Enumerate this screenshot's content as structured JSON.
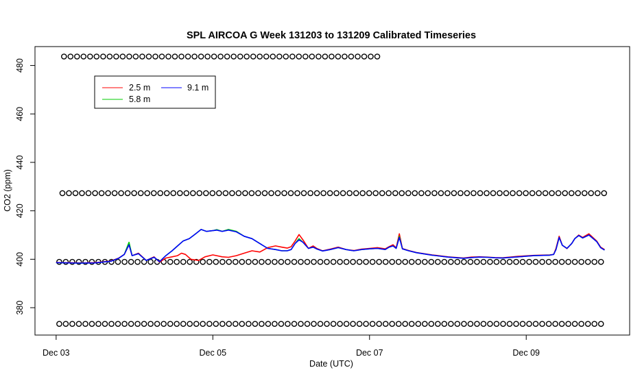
{
  "chart_data": {
    "type": "line",
    "title": "SPL AIRCOA G  Week 131203 to 131209  Calibrated Timeseries",
    "xlabel": "Date (UTC)",
    "ylabel": "CO2 (ppm)",
    "x_tick_labels": [
      "Dec 03",
      "Dec 05",
      "Dec 07",
      "Dec 09"
    ],
    "x_tick_values": [
      0,
      2,
      4,
      6
    ],
    "xlim": [
      -0.27,
      7.32
    ],
    "y_ticks": [
      380,
      400,
      420,
      440,
      460,
      480
    ],
    "ylim": [
      368.7,
      487.8
    ],
    "legend_position": "top-left",
    "legend": [
      {
        "name": "2.5 m",
        "color": "#ff0000"
      },
      {
        "name": "5.8 m",
        "color": "#00cd00"
      },
      {
        "name": "9.1 m",
        "color": "#0000ff"
      }
    ],
    "series": [
      {
        "name": "2.5 m",
        "color": "#ff0000",
        "points": [
          [
            0.0,
            398.7
          ],
          [
            0.3,
            398.5
          ],
          [
            0.5,
            398.6
          ],
          [
            0.7,
            399.3
          ],
          [
            0.8,
            400.5
          ],
          [
            0.87,
            402.0
          ],
          [
            0.93,
            406.0
          ],
          [
            0.97,
            401.5
          ],
          [
            1.05,
            402.5
          ],
          [
            1.15,
            399.5
          ],
          [
            1.25,
            401.0
          ],
          [
            1.32,
            398.8
          ],
          [
            1.4,
            400.5
          ],
          [
            1.48,
            401.0
          ],
          [
            1.55,
            401.5
          ],
          [
            1.6,
            402.5
          ],
          [
            1.65,
            402.0
          ],
          [
            1.72,
            400.0
          ],
          [
            1.82,
            399.5
          ],
          [
            1.9,
            401.0
          ],
          [
            2.0,
            401.8
          ],
          [
            2.12,
            401.0
          ],
          [
            2.2,
            400.8
          ],
          [
            2.3,
            401.5
          ],
          [
            2.4,
            402.5
          ],
          [
            2.5,
            403.5
          ],
          [
            2.6,
            403.0
          ],
          [
            2.7,
            404.8
          ],
          [
            2.8,
            405.5
          ],
          [
            2.88,
            405.0
          ],
          [
            2.95,
            404.6
          ],
          [
            3.0,
            405.2
          ],
          [
            3.05,
            407.5
          ],
          [
            3.1,
            410.2
          ],
          [
            3.15,
            408.0
          ],
          [
            3.22,
            404.5
          ],
          [
            3.28,
            405.5
          ],
          [
            3.33,
            404.4
          ],
          [
            3.4,
            403.5
          ],
          [
            3.5,
            404.2
          ],
          [
            3.6,
            405.0
          ],
          [
            3.7,
            404.0
          ],
          [
            3.8,
            403.6
          ],
          [
            3.9,
            404.2
          ],
          [
            4.0,
            404.5
          ],
          [
            4.1,
            404.8
          ],
          [
            4.2,
            404.3
          ],
          [
            4.25,
            405.2
          ],
          [
            4.3,
            406.0
          ],
          [
            4.34,
            404.7
          ],
          [
            4.38,
            410.5
          ],
          [
            4.42,
            404.4
          ],
          [
            4.5,
            403.6
          ],
          [
            4.6,
            402.8
          ],
          [
            4.8,
            401.8
          ],
          [
            5.0,
            401.0
          ],
          [
            5.2,
            400.5
          ],
          [
            5.3,
            400.9
          ],
          [
            5.4,
            401.0
          ],
          [
            5.5,
            400.9
          ],
          [
            5.6,
            400.7
          ],
          [
            5.7,
            400.6
          ],
          [
            5.9,
            401.2
          ],
          [
            6.1,
            401.6
          ],
          [
            6.3,
            401.8
          ],
          [
            6.35,
            402.0
          ],
          [
            6.38,
            404.5
          ],
          [
            6.42,
            409.5
          ],
          [
            6.46,
            405.8
          ],
          [
            6.52,
            404.4
          ],
          [
            6.58,
            406.5
          ],
          [
            6.62,
            408.5
          ],
          [
            6.67,
            410.0
          ],
          [
            6.72,
            409.0
          ],
          [
            6.8,
            410.5
          ],
          [
            6.9,
            407.5
          ],
          [
            6.95,
            405.0
          ],
          [
            7.0,
            404.0
          ]
        ]
      },
      {
        "name": "5.8 m",
        "color": "#00cd00",
        "points": [
          [
            0.0,
            398.6
          ],
          [
            0.3,
            398.4
          ],
          [
            0.5,
            398.5
          ],
          [
            0.7,
            399.2
          ],
          [
            0.8,
            400.4
          ],
          [
            0.87,
            402.0
          ],
          [
            0.93,
            407.0
          ],
          [
            0.97,
            401.5
          ],
          [
            1.05,
            402.3
          ],
          [
            1.15,
            399.5
          ],
          [
            1.25,
            400.8
          ],
          [
            1.32,
            399.0
          ],
          [
            1.4,
            401.5
          ],
          [
            1.48,
            403.5
          ],
          [
            1.55,
            405.5
          ],
          [
            1.62,
            407.5
          ],
          [
            1.7,
            408.5
          ],
          [
            1.78,
            410.5
          ],
          [
            1.85,
            412.3
          ],
          [
            1.92,
            411.5
          ],
          [
            2.0,
            411.8
          ],
          [
            2.05,
            412.2
          ],
          [
            2.12,
            411.5
          ],
          [
            2.2,
            412.3
          ],
          [
            2.3,
            411.5
          ],
          [
            2.4,
            409.5
          ],
          [
            2.5,
            408.5
          ],
          [
            2.6,
            406.5
          ],
          [
            2.7,
            404.5
          ],
          [
            2.8,
            404.0
          ],
          [
            2.88,
            403.5
          ],
          [
            2.95,
            403.5
          ],
          [
            3.0,
            404.0
          ],
          [
            3.05,
            406.5
          ],
          [
            3.1,
            408.5
          ],
          [
            3.15,
            407.0
          ],
          [
            3.22,
            404.5
          ],
          [
            3.28,
            405.0
          ],
          [
            3.33,
            404.2
          ],
          [
            3.4,
            403.4
          ],
          [
            3.5,
            404.0
          ],
          [
            3.6,
            404.8
          ],
          [
            3.7,
            404.0
          ],
          [
            3.8,
            403.5
          ],
          [
            3.9,
            404.0
          ],
          [
            4.0,
            404.3
          ],
          [
            4.1,
            404.5
          ],
          [
            4.2,
            404.0
          ],
          [
            4.25,
            405.0
          ],
          [
            4.3,
            405.5
          ],
          [
            4.34,
            404.5
          ],
          [
            4.38,
            409.5
          ],
          [
            4.42,
            404.3
          ],
          [
            4.5,
            403.5
          ],
          [
            4.6,
            402.7
          ],
          [
            4.8,
            401.7
          ],
          [
            5.0,
            400.9
          ],
          [
            5.2,
            400.4
          ],
          [
            5.3,
            400.7
          ],
          [
            5.4,
            400.9
          ],
          [
            5.5,
            400.8
          ],
          [
            5.6,
            400.6
          ],
          [
            5.7,
            400.5
          ],
          [
            5.9,
            401.0
          ],
          [
            6.1,
            401.5
          ],
          [
            6.3,
            401.7
          ],
          [
            6.35,
            402.0
          ],
          [
            6.38,
            404.0
          ],
          [
            6.42,
            409.0
          ],
          [
            6.46,
            405.8
          ],
          [
            6.52,
            404.5
          ],
          [
            6.58,
            406.5
          ],
          [
            6.62,
            408.5
          ],
          [
            6.67,
            409.8
          ],
          [
            6.72,
            408.8
          ],
          [
            6.8,
            410.0
          ],
          [
            6.9,
            407.3
          ],
          [
            6.95,
            404.8
          ],
          [
            7.0,
            403.8
          ]
        ]
      },
      {
        "name": "9.1 m",
        "color": "#0000ff",
        "points": [
          [
            0.0,
            398.6
          ],
          [
            0.3,
            398.4
          ],
          [
            0.5,
            398.5
          ],
          [
            0.7,
            399.2
          ],
          [
            0.8,
            400.4
          ],
          [
            0.87,
            402.0
          ],
          [
            0.93,
            406.0
          ],
          [
            0.97,
            401.5
          ],
          [
            1.05,
            402.3
          ],
          [
            1.15,
            399.5
          ],
          [
            1.25,
            400.8
          ],
          [
            1.32,
            399.0
          ],
          [
            1.4,
            401.5
          ],
          [
            1.48,
            403.5
          ],
          [
            1.55,
            405.5
          ],
          [
            1.62,
            407.5
          ],
          [
            1.7,
            408.5
          ],
          [
            1.78,
            410.5
          ],
          [
            1.85,
            412.3
          ],
          [
            1.92,
            411.5
          ],
          [
            2.0,
            411.8
          ],
          [
            2.05,
            412.0
          ],
          [
            2.12,
            411.5
          ],
          [
            2.2,
            412.0
          ],
          [
            2.3,
            411.3
          ],
          [
            2.4,
            409.5
          ],
          [
            2.5,
            408.5
          ],
          [
            2.6,
            406.5
          ],
          [
            2.7,
            404.5
          ],
          [
            2.8,
            404.0
          ],
          [
            2.88,
            403.5
          ],
          [
            2.95,
            403.5
          ],
          [
            3.0,
            404.0
          ],
          [
            3.05,
            406.5
          ],
          [
            3.1,
            408.0
          ],
          [
            3.15,
            407.0
          ],
          [
            3.22,
            404.5
          ],
          [
            3.28,
            405.0
          ],
          [
            3.33,
            404.2
          ],
          [
            3.4,
            403.4
          ],
          [
            3.5,
            404.0
          ],
          [
            3.6,
            404.8
          ],
          [
            3.7,
            404.0
          ],
          [
            3.8,
            403.5
          ],
          [
            3.9,
            404.0
          ],
          [
            4.0,
            404.3
          ],
          [
            4.1,
            404.5
          ],
          [
            4.2,
            404.0
          ],
          [
            4.25,
            405.0
          ],
          [
            4.3,
            405.5
          ],
          [
            4.34,
            404.5
          ],
          [
            4.38,
            409.0
          ],
          [
            4.42,
            404.3
          ],
          [
            4.5,
            403.5
          ],
          [
            4.6,
            402.7
          ],
          [
            4.8,
            401.7
          ],
          [
            5.0,
            400.9
          ],
          [
            5.2,
            400.4
          ],
          [
            5.3,
            400.7
          ],
          [
            5.4,
            400.9
          ],
          [
            5.5,
            400.8
          ],
          [
            5.6,
            400.6
          ],
          [
            5.7,
            400.5
          ],
          [
            5.9,
            401.0
          ],
          [
            6.1,
            401.5
          ],
          [
            6.3,
            401.7
          ],
          [
            6.35,
            402.0
          ],
          [
            6.38,
            404.0
          ],
          [
            6.42,
            409.0
          ],
          [
            6.46,
            405.8
          ],
          [
            6.52,
            404.5
          ],
          [
            6.58,
            406.5
          ],
          [
            6.62,
            408.5
          ],
          [
            6.67,
            409.8
          ],
          [
            6.72,
            408.8
          ],
          [
            6.8,
            410.0
          ],
          [
            6.9,
            407.3
          ],
          [
            6.95,
            404.8
          ],
          [
            7.0,
            403.8
          ]
        ]
      }
    ],
    "marker_rows": [
      {
        "y": 483.7,
        "x_start": 0.1,
        "x_end": 4.1,
        "step": 0.0833
      },
      {
        "y": 427.3,
        "x_start": 0.08,
        "x_end": 6.98,
        "step": 0.0833
      },
      {
        "y": 398.9,
        "x_start": 0.04,
        "x_end": 6.98,
        "step": 0.0833
      },
      {
        "y": 373.3,
        "x_start": 0.04,
        "x_end": 6.98,
        "step": 0.0833
      }
    ]
  }
}
